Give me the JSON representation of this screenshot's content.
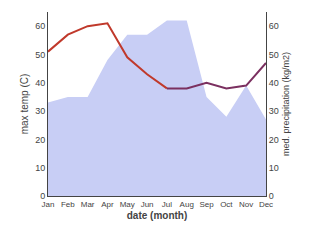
{
  "chart_data": {
    "type": "line",
    "xlabel": "date (month)",
    "ylabel": "max temp (C)",
    "y2label": "med. precipitation (kg/m2)",
    "categories": [
      "Jan",
      "Feb",
      "Mar",
      "Apr",
      "May",
      "Jun",
      "Jul",
      "Aug",
      "Sep",
      "Oct",
      "Nov",
      "Dec"
    ],
    "series": [
      {
        "type": "area",
        "axis": "y2",
        "color": "#c8cef5",
        "values": [
          33,
          35,
          35,
          48,
          57,
          57,
          62,
          62,
          35,
          28,
          39,
          27
        ]
      },
      {
        "type": "line",
        "color": "#c0392b",
        "values": [
          51,
          57,
          60,
          61,
          49,
          43,
          38,
          null,
          null,
          null,
          null,
          null
        ]
      },
      {
        "type": "line",
        "color": "#7b3060",
        "values": [
          null,
          null,
          null,
          null,
          null,
          null,
          38,
          38,
          40,
          38,
          39,
          47
        ]
      }
    ],
    "ylim": [
      0,
      65
    ],
    "yticks": [
      0,
      10,
      20,
      30,
      40,
      50,
      60
    ],
    "y2lim": [
      0,
      65
    ],
    "y2ticks": [
      0,
      10,
      20,
      30,
      40,
      50,
      60
    ],
    "grid": false
  }
}
